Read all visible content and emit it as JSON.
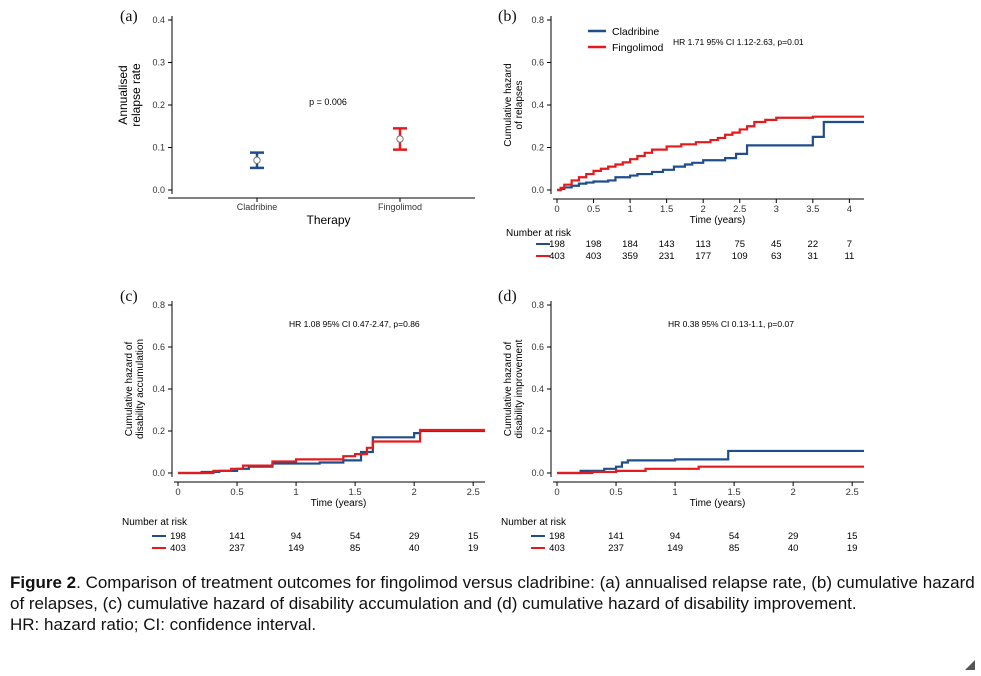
{
  "colors": {
    "cladribine": "#1f4e8c",
    "fingolimod": "#e41a1c"
  },
  "chart_data": [
    {
      "id": "a",
      "letter": "(a)",
      "type": "errorbar",
      "ylabel": [
        "Annualised",
        "relapse rate"
      ],
      "xlabel": "Therapy",
      "categories": [
        "Cladribine",
        "Fingolimod"
      ],
      "ylim": [
        0,
        0.4
      ],
      "yticks": [
        "0.0",
        "0.1",
        "0.2",
        "0.3",
        "0.4"
      ],
      "points": [
        {
          "name": "Cladribine",
          "estimate": 0.07,
          "lower": 0.052,
          "upper": 0.088
        },
        {
          "name": "Fingolimod",
          "estimate": 0.12,
          "lower": 0.095,
          "upper": 0.145
        }
      ],
      "annotation": "p = 0.006"
    },
    {
      "id": "b",
      "letter": "(b)",
      "type": "line",
      "step": true,
      "ylabel": [
        "Cumulative hazard",
        "of relapses"
      ],
      "xlabel": "Time (years)",
      "xlim": [
        0,
        4.2
      ],
      "xticks": [
        "0",
        "0.5",
        "1",
        "1.5",
        "2",
        "2.5",
        "3",
        "3.5",
        "4"
      ],
      "ylim": [
        0,
        0.8
      ],
      "yticks": [
        "0.0",
        "0.2",
        "0.4",
        "0.6",
        "0.8"
      ],
      "legend": [
        "Cladribine",
        "Fingolimod"
      ],
      "annotation": "HR 1.71 95% CI 1.12-2.63, p=0.01",
      "series": [
        {
          "name": "Cladribine",
          "x": [
            0,
            0.05,
            0.1,
            0.2,
            0.3,
            0.4,
            0.5,
            0.7,
            0.8,
            1.0,
            1.1,
            1.3,
            1.45,
            1.6,
            1.75,
            1.85,
            2.0,
            2.3,
            2.45,
            2.6,
            3.0,
            3.5,
            3.65,
            4.2
          ],
          "y": [
            0,
            0.005,
            0.012,
            0.02,
            0.03,
            0.035,
            0.04,
            0.045,
            0.06,
            0.068,
            0.075,
            0.085,
            0.095,
            0.11,
            0.12,
            0.128,
            0.14,
            0.15,
            0.17,
            0.21,
            0.21,
            0.25,
            0.32,
            0.32
          ]
        },
        {
          "name": "Fingolimod",
          "x": [
            0,
            0.05,
            0.1,
            0.2,
            0.3,
            0.4,
            0.5,
            0.6,
            0.7,
            0.8,
            0.9,
            1.0,
            1.1,
            1.2,
            1.3,
            1.5,
            1.7,
            1.9,
            2.1,
            2.2,
            2.3,
            2.4,
            2.5,
            2.6,
            2.7,
            2.85,
            3.0,
            3.5,
            4.2
          ],
          "y": [
            0,
            0.01,
            0.025,
            0.045,
            0.06,
            0.075,
            0.09,
            0.1,
            0.11,
            0.12,
            0.13,
            0.145,
            0.16,
            0.175,
            0.19,
            0.205,
            0.215,
            0.225,
            0.235,
            0.245,
            0.26,
            0.27,
            0.285,
            0.3,
            0.32,
            0.33,
            0.34,
            0.345,
            0.345
          ]
        }
      ],
      "risk_label": "Number at risk",
      "risk_x": [
        0,
        0.5,
        1,
        1.5,
        2,
        2.5,
        3,
        3.5,
        4
      ],
      "risk": [
        {
          "name": "Cladribine",
          "values": [
            "198",
            "198",
            "184",
            "143",
            "113",
            "75",
            "45",
            "22",
            "7"
          ]
        },
        {
          "name": "Fingolimod",
          "values": [
            "403",
            "403",
            "359",
            "231",
            "177",
            "109",
            "63",
            "31",
            "11"
          ]
        }
      ]
    },
    {
      "id": "c",
      "letter": "(c)",
      "type": "line",
      "step": true,
      "ylabel": [
        "Cumulative hazard of",
        "disability accumulation"
      ],
      "xlabel": "Time (years)",
      "xlim": [
        0,
        2.6
      ],
      "xticks": [
        "0",
        "0.5",
        "1",
        "1.5",
        "2",
        "2.5"
      ],
      "ylim": [
        0,
        0.8
      ],
      "yticks": [
        "0.0",
        "0.2",
        "0.4",
        "0.6",
        "0.8"
      ],
      "annotation": "HR 1.08 95% CI 0.47-2.47, p=0.86",
      "series": [
        {
          "name": "Cladribine",
          "x": [
            0,
            0.2,
            0.35,
            0.5,
            0.6,
            0.8,
            1.2,
            1.4,
            1.55,
            1.65,
            2.0,
            2.05,
            2.6
          ],
          "y": [
            0,
            0.005,
            0.01,
            0.02,
            0.03,
            0.045,
            0.05,
            0.06,
            0.1,
            0.17,
            0.19,
            0.2,
            0.2
          ]
        },
        {
          "name": "Fingolimod",
          "x": [
            0,
            0.3,
            0.45,
            0.55,
            0.8,
            1.0,
            1.4,
            1.5,
            1.6,
            1.65,
            1.7,
            2.05,
            2.6
          ],
          "y": [
            0,
            0.01,
            0.02,
            0.035,
            0.055,
            0.065,
            0.08,
            0.09,
            0.12,
            0.15,
            0.15,
            0.205,
            0.205
          ]
        }
      ],
      "risk_label": "Number at risk",
      "risk_x": [
        0,
        0.5,
        1,
        1.5,
        2,
        2.5
      ],
      "risk": [
        {
          "name": "Cladribine",
          "values": [
            "198",
            "141",
            "94",
            "54",
            "29",
            "15"
          ]
        },
        {
          "name": "Fingolimod",
          "values": [
            "403",
            "237",
            "149",
            "85",
            "40",
            "19"
          ]
        }
      ]
    },
    {
      "id": "d",
      "letter": "(d)",
      "type": "line",
      "step": true,
      "ylabel": [
        "Cumulative hazard of",
        "disability improvement"
      ],
      "xlabel": "Time (years)",
      "xlim": [
        0,
        2.6
      ],
      "xticks": [
        "0",
        "0.5",
        "1",
        "1.5",
        "2",
        "2.5"
      ],
      "ylim": [
        0,
        0.8
      ],
      "yticks": [
        "0.0",
        "0.2",
        "0.4",
        "0.6",
        "0.8"
      ],
      "annotation": "HR 0.38 95% CI 0.13-1.1, p=0.07",
      "series": [
        {
          "name": "Cladribine",
          "x": [
            0,
            0.2,
            0.4,
            0.5,
            0.55,
            0.6,
            1.0,
            1.45,
            2.6
          ],
          "y": [
            0,
            0.01,
            0.02,
            0.03,
            0.05,
            0.06,
            0.065,
            0.105,
            0.105
          ]
        },
        {
          "name": "Fingolimod",
          "x": [
            0,
            0.3,
            0.5,
            0.75,
            1.2,
            2.6
          ],
          "y": [
            0,
            0.005,
            0.01,
            0.02,
            0.03,
            0.03
          ]
        }
      ],
      "risk_label": "Number at risk",
      "risk_x": [
        0,
        0.5,
        1,
        1.5,
        2,
        2.5
      ],
      "risk": [
        {
          "name": "Cladribine",
          "values": [
            "198",
            "141",
            "94",
            "54",
            "29",
            "15"
          ]
        },
        {
          "name": "Fingolimod",
          "values": [
            "403",
            "237",
            "149",
            "85",
            "40",
            "19"
          ]
        }
      ]
    }
  ],
  "caption": {
    "figure_label": "Figure 2",
    "text": ". Comparison of treatment outcomes for fingolimod versus cladribine: (a) annualised relapse rate, (b) cumulative hazard of relapses, (c) cumulative hazard of disability accumulation and (d) cumulative hazard of disability improvement.",
    "abbreviations": "HR: hazard ratio; CI: confidence interval."
  }
}
